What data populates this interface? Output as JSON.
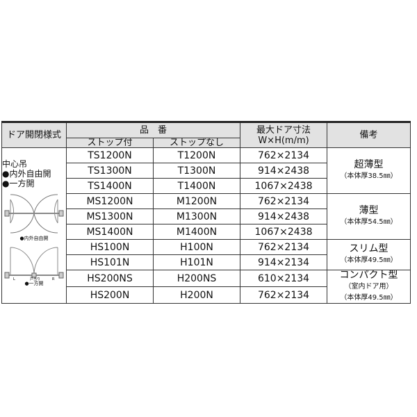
{
  "header": {
    "style": "ドア開閉様式",
    "product_no": "品　番",
    "with_stop": "ストップ付",
    "without_stop": "ストップなし",
    "max_size": "最大ドア寸法",
    "max_size_unit": "W×H(m/m)",
    "remarks": "備考"
  },
  "style": {
    "lines": [
      "中心吊",
      "●内外自由開",
      "●一方開"
    ],
    "caption1": "●内外自由開",
    "caption2": "●一方開",
    "diagram_labels": [
      "L",
      "戸当り",
      "R"
    ]
  },
  "rows": [
    {
      "with_stop": "TS1200N",
      "without_stop": "T1200N",
      "size": "762×2134"
    },
    {
      "with_stop": "TS1300N",
      "without_stop": "T1300N",
      "size": "914×2438"
    },
    {
      "with_stop": "TS1400N",
      "without_stop": "T1400N",
      "size": "1067×2438"
    },
    {
      "with_stop": "MS1200N",
      "without_stop": "M1200N",
      "size": "762×2134"
    },
    {
      "with_stop": "MS1300N",
      "without_stop": "M1300N",
      "size": "914×2438"
    },
    {
      "with_stop": "MS1400N",
      "without_stop": "M1400N",
      "size": "1067×2438"
    },
    {
      "with_stop": "HS100N",
      "without_stop": "H100N",
      "size": "762×2134"
    },
    {
      "with_stop": "HS101N",
      "without_stop": "H101N",
      "size": "914×2134"
    },
    {
      "with_stop": "HS200NS",
      "without_stop": "H200NS",
      "size": "610×2134"
    },
    {
      "with_stop": "HS200N",
      "without_stop": "H200N",
      "size": "762×2134"
    }
  ],
  "remarks": [
    {
      "title": "超薄型",
      "lines": [
        "（本体厚38.5㎜）"
      ]
    },
    {
      "title": "薄型",
      "lines": [
        "（本体厚54.5㎜）"
      ]
    },
    {
      "title": "スリム型",
      "lines": [
        "（本体厚49.5㎜）"
      ]
    },
    {
      "title": "コンパクト型",
      "lines": [
        "（室内ドア用）",
        "（本体厚49.5㎜）"
      ]
    }
  ]
}
